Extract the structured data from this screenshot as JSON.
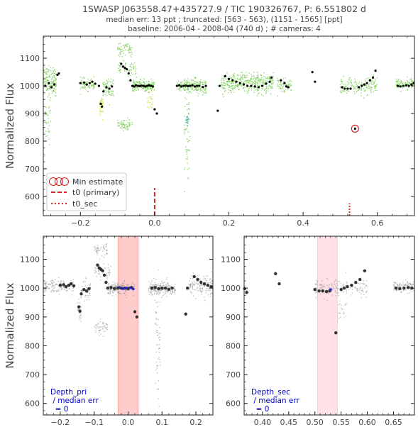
{
  "header": {
    "title": "1SWASP J063558.47+435727.9 / TIC 190326767, P: 6.551802 d",
    "subtitle1": "median err: 13 ppt ; truncated: [563 - 563), (1151 - 1565] [ppt]",
    "subtitle2": "baseline: 2006-04 - 2008-04 (740 d)  ;  # cameras: 4"
  },
  "colors": {
    "camera_green": "#7fd15a",
    "camera_yellow": "#d8dd3a",
    "camera_teal": "#3aa0a0",
    "camera_purple": "#8a3ab0",
    "binned": "#000000",
    "min_marker": "#d62728",
    "t0_line": "#d62728",
    "primary_band": "#ff9999",
    "secondary_band": "#ffc8d2",
    "annotation": "#0000cc"
  },
  "chart_data": [
    {
      "id": "top",
      "type": "scatter",
      "xlim": [
        -0.3,
        0.7
      ],
      "ylim": [
        530,
        1180
      ],
      "ylabel": "Normalized Flux",
      "xlabel": "",
      "x_ticks": [
        -0.2,
        0.0,
        0.2,
        0.4,
        0.6
      ],
      "x_tick_labels": [
        "−0.2",
        "0.0",
        "0.2",
        "0.4",
        "0.6"
      ],
      "y_ticks": [
        600,
        700,
        800,
        900,
        1000,
        1100
      ],
      "y_tick_labels": [
        "600",
        "700",
        "800",
        "900",
        "1000",
        "1100"
      ],
      "legend": {
        "placement": "lower-left",
        "entries": [
          "Min estimate",
          "t0 (primary)",
          "t0_sec"
        ]
      },
      "t0_primary": 0.0,
      "t0_sec": 0.525,
      "min_estimate": {
        "x": 0.54,
        "y": 845
      },
      "binned": [
        [
          -0.295,
          1000
        ],
        [
          -0.285,
          1010
        ],
        [
          -0.278,
          995
        ],
        [
          -0.27,
          1005
        ],
        [
          -0.262,
          1040
        ],
        [
          -0.258,
          1045
        ],
        [
          -0.2,
          1010
        ],
        [
          -0.19,
          1012
        ],
        [
          -0.183,
          1005
        ],
        [
          -0.175,
          1010
        ],
        [
          -0.168,
          1015
        ],
        [
          -0.16,
          1008
        ],
        [
          -0.15,
          1000
        ],
        [
          -0.145,
          935
        ],
        [
          -0.142,
          925
        ],
        [
          -0.138,
          980
        ],
        [
          -0.13,
          995
        ],
        [
          -0.122,
          990
        ],
        [
          -0.115,
          998
        ],
        [
          -0.09,
          1080
        ],
        [
          -0.085,
          1070
        ],
        [
          -0.08,
          1065
        ],
        [
          -0.075,
          1060
        ],
        [
          -0.07,
          1045
        ],
        [
          -0.065,
          1020
        ],
        [
          -0.06,
          1000
        ],
        [
          -0.055,
          998
        ],
        [
          -0.05,
          1002
        ],
        [
          -0.045,
          1000
        ],
        [
          -0.04,
          999
        ],
        [
          -0.035,
          1001
        ],
        [
          -0.03,
          1000
        ],
        [
          -0.025,
          998
        ],
        [
          -0.02,
          1000
        ],
        [
          -0.015,
          1002
        ],
        [
          -0.01,
          1000
        ],
        [
          -0.005,
          998
        ],
        [
          0.0,
          915
        ],
        [
          0.006,
          900
        ],
        [
          0.06,
          1000
        ],
        [
          0.066,
          1002
        ],
        [
          0.072,
          998
        ],
        [
          0.078,
          1000
        ],
        [
          0.084,
          1001
        ],
        [
          0.09,
          999
        ],
        [
          0.096,
          1000
        ],
        [
          0.102,
          1002
        ],
        [
          0.108,
          998
        ],
        [
          0.114,
          1000
        ],
        [
          0.12,
          1000
        ],
        [
          0.13,
          996
        ],
        [
          0.138,
          1000
        ],
        [
          0.17,
          910
        ],
        [
          0.175,
          1000
        ],
        [
          0.19,
          1035
        ],
        [
          0.2,
          1025
        ],
        [
          0.21,
          1020
        ],
        [
          0.22,
          1015
        ],
        [
          0.23,
          1010
        ],
        [
          0.24,
          1005
        ],
        [
          0.25,
          1000
        ],
        [
          0.26,
          1000
        ],
        [
          0.27,
          998
        ],
        [
          0.28,
          995
        ],
        [
          0.29,
          1000
        ],
        [
          0.3,
          1008
        ],
        [
          0.31,
          1015
        ],
        [
          0.315,
          1030
        ],
        [
          0.34,
          1020
        ],
        [
          0.35,
          1010
        ],
        [
          0.355,
          998
        ],
        [
          0.36,
          995
        ],
        [
          0.425,
          1050
        ],
        [
          0.432,
          1015
        ],
        [
          0.505,
          995
        ],
        [
          0.512,
          990
        ],
        [
          0.52,
          990
        ],
        [
          0.528,
          990
        ],
        [
          0.54,
          845
        ],
        [
          0.55,
          995
        ],
        [
          0.558,
          1000
        ],
        [
          0.565,
          1005
        ],
        [
          0.572,
          1010
        ],
        [
          0.58,
          1020
        ],
        [
          0.588,
          1030
        ],
        [
          0.595,
          1055
        ],
        [
          0.655,
          1000
        ],
        [
          0.662,
          998
        ],
        [
          0.67,
          1000
        ],
        [
          0.678,
          1002
        ],
        [
          0.685,
          1000
        ],
        [
          0.692,
          1005
        ],
        [
          0.698,
          1010
        ]
      ],
      "raw_clusters": [
        {
          "x": [
            -0.3,
            -0.265
          ],
          "y_center": 1020,
          "y_spread": 50,
          "n": 150,
          "color": "#7fd15a"
        },
        {
          "x": [
            -0.3,
            -0.28
          ],
          "y_center": 880,
          "y_spread": 80,
          "n": 40,
          "color": "#7fd15a"
        },
        {
          "x": [
            -0.2,
            -0.16
          ],
          "y_center": 1005,
          "y_spread": 20,
          "n": 80,
          "color": "#7fd15a"
        },
        {
          "x": [
            -0.148,
            -0.138
          ],
          "y_center": 925,
          "y_spread": 40,
          "n": 40,
          "color": "#d8dd3a"
        },
        {
          "x": [
            -0.14,
            -0.11
          ],
          "y_center": 990,
          "y_spread": 40,
          "n": 70,
          "color": "#7fd15a"
        },
        {
          "x": [
            -0.1,
            -0.06
          ],
          "y_center": 1130,
          "y_spread": 20,
          "n": 60,
          "color": "#7fd15a"
        },
        {
          "x": [
            -0.1,
            -0.06
          ],
          "y_center": 860,
          "y_spread": 25,
          "n": 60,
          "color": "#7fd15a"
        },
        {
          "x": [
            -0.1,
            -0.05
          ],
          "y_center": 1060,
          "y_spread": 30,
          "n": 60,
          "color": "#7fd15a"
        },
        {
          "x": [
            -0.06,
            0.0
          ],
          "y_center": 1000,
          "y_spread": 20,
          "n": 180,
          "color": "#7fd15a"
        },
        {
          "x": [
            -0.02,
            -0.005
          ],
          "y_center": 950,
          "y_spread": 30,
          "n": 25,
          "color": "#d8dd3a"
        },
        {
          "x": [
            0.06,
            0.14
          ],
          "y_center": 1000,
          "y_spread": 25,
          "n": 220,
          "color": "#7fd15a"
        },
        {
          "x": [
            0.08,
            0.095
          ],
          "y_center": 800,
          "y_spread": 200,
          "n": 60,
          "color": "#7fd15a"
        },
        {
          "x": [
            0.085,
            0.092
          ],
          "y_center": 870,
          "y_spread": 20,
          "n": 15,
          "color": "#3aa0a0"
        },
        {
          "x": [
            0.18,
            0.32
          ],
          "y_center": 1010,
          "y_spread": 35,
          "n": 380,
          "color": "#7fd15a"
        },
        {
          "x": [
            0.33,
            0.37
          ],
          "y_center": 1005,
          "y_spread": 25,
          "n": 60,
          "color": "#7fd15a"
        },
        {
          "x": [
            0.5,
            0.6
          ],
          "y_center": 1000,
          "y_spread": 30,
          "n": 160,
          "color": "#7fd15a"
        },
        {
          "x": [
            0.65,
            0.7
          ],
          "y_center": 1005,
          "y_spread": 20,
          "n": 100,
          "color": "#7fd15a"
        }
      ]
    },
    {
      "id": "bottom-left",
      "type": "scatter",
      "xlim": [
        -0.25,
        0.25
      ],
      "ylim": [
        560,
        1180
      ],
      "ylabel": "Normalized Flux",
      "x_ticks": [
        -0.2,
        -0.1,
        0.0,
        0.1,
        0.2
      ],
      "x_tick_labels": [
        "−0.2",
        "−0.1",
        "0.0",
        "0.1",
        "0.2"
      ],
      "y_ticks": [
        600,
        700,
        800,
        900,
        1000,
        1100
      ],
      "y_tick_labels": [
        "600",
        "700",
        "800",
        "900",
        "1000",
        "1100"
      ],
      "band": [
        -0.03,
        0.03
      ],
      "annotation": [
        "Depth_pri",
        " / median err",
        "  = 0"
      ],
      "binned": [
        [
          -0.2,
          1010
        ],
        [
          -0.19,
          1012
        ],
        [
          -0.183,
          1005
        ],
        [
          -0.175,
          1010
        ],
        [
          -0.168,
          1015
        ],
        [
          -0.16,
          1008
        ],
        [
          -0.145,
          935
        ],
        [
          -0.142,
          920
        ],
        [
          -0.138,
          980
        ],
        [
          -0.13,
          995
        ],
        [
          -0.122,
          990
        ],
        [
          -0.115,
          998
        ],
        [
          -0.09,
          1080
        ],
        [
          -0.085,
          1070
        ],
        [
          -0.08,
          1065
        ],
        [
          -0.075,
          1060
        ],
        [
          -0.07,
          1045
        ],
        [
          -0.065,
          1020
        ],
        [
          -0.06,
          1000
        ],
        [
          -0.05,
          1002
        ],
        [
          -0.04,
          999
        ],
        [
          -0.03,
          1000
        ],
        [
          -0.02,
          1000
        ],
        [
          -0.01,
          1000
        ],
        [
          0.0,
          998
        ],
        [
          0.01,
          1002
        ],
        [
          0.02,
          918
        ],
        [
          0.026,
          900
        ],
        [
          0.07,
          1000
        ],
        [
          0.08,
          1002
        ],
        [
          0.09,
          998
        ],
        [
          0.1,
          1000
        ],
        [
          0.11,
          1000
        ],
        [
          0.12,
          996
        ],
        [
          0.13,
          1000
        ],
        [
          0.17,
          910
        ],
        [
          0.175,
          1000
        ],
        [
          0.195,
          1040
        ],
        [
          0.205,
          1030
        ],
        [
          0.215,
          1020
        ],
        [
          0.225,
          1015
        ],
        [
          0.235,
          1010
        ],
        [
          0.245,
          1005
        ]
      ],
      "raw_clusters": [
        {
          "x": [
            -0.25,
            -0.16
          ],
          "y_center": 1005,
          "y_spread": 25,
          "n": 140
        },
        {
          "x": [
            -0.15,
            -0.138
          ],
          "y_center": 920,
          "y_spread": 40,
          "n": 30
        },
        {
          "x": [
            -0.14,
            -0.11
          ],
          "y_center": 990,
          "y_spread": 40,
          "n": 60
        },
        {
          "x": [
            -0.1,
            -0.06
          ],
          "y_center": 1130,
          "y_spread": 20,
          "n": 50
        },
        {
          "x": [
            -0.1,
            -0.06
          ],
          "y_center": 860,
          "y_spread": 25,
          "n": 50
        },
        {
          "x": [
            -0.1,
            -0.05
          ],
          "y_center": 1060,
          "y_spread": 30,
          "n": 50
        },
        {
          "x": [
            -0.06,
            0.02
          ],
          "y_center": 1000,
          "y_spread": 20,
          "n": 200
        },
        {
          "x": [
            0.06,
            0.14
          ],
          "y_center": 1000,
          "y_spread": 25,
          "n": 220
        },
        {
          "x": [
            0.08,
            0.095
          ],
          "y_center": 800,
          "y_spread": 200,
          "n": 60
        },
        {
          "x": [
            0.18,
            0.25
          ],
          "y_center": 1010,
          "y_spread": 35,
          "n": 150
        }
      ],
      "highlight_points": [
        [
          -0.025,
          1002
        ],
        [
          -0.015,
          998
        ],
        [
          -0.005,
          1000
        ],
        [
          0.005,
          1001
        ],
        [
          0.015,
          997
        ]
      ]
    },
    {
      "id": "bottom-right",
      "type": "scatter",
      "xlim": [
        0.365,
        0.69
      ],
      "ylim": [
        560,
        1180
      ],
      "x_ticks": [
        0.4,
        0.45,
        0.5,
        0.55,
        0.6,
        0.65
      ],
      "x_tick_labels": [
        "0.40",
        "0.45",
        "0.50",
        "0.55",
        "0.60",
        "0.65"
      ],
      "y_ticks": [
        600,
        700,
        800,
        900,
        1000,
        1100
      ],
      "y_tick_labels": [
        "600",
        "700",
        "800",
        "900",
        "1000",
        "1100"
      ],
      "band": [
        0.505,
        0.543
      ],
      "annotation": [
        "Depth_sec",
        " / median err",
        "  = 0"
      ],
      "binned": [
        [
          0.366,
          998
        ],
        [
          0.37,
          985
        ],
        [
          0.425,
          1050
        ],
        [
          0.432,
          1015
        ],
        [
          0.5,
          995
        ],
        [
          0.508,
          990
        ],
        [
          0.515,
          990
        ],
        [
          0.522,
          988
        ],
        [
          0.528,
          990
        ],
        [
          0.54,
          845
        ],
        [
          0.55,
          995
        ],
        [
          0.556,
          1000
        ],
        [
          0.562,
          1005
        ],
        [
          0.57,
          1010
        ],
        [
          0.578,
          1020
        ],
        [
          0.586,
          1030
        ],
        [
          0.595,
          1060
        ],
        [
          0.655,
          1000
        ],
        [
          0.662,
          998
        ],
        [
          0.67,
          1000
        ],
        [
          0.678,
          1002
        ],
        [
          0.685,
          1000
        ]
      ],
      "raw_clusters": [
        {
          "x": [
            0.365,
            0.372
          ],
          "y_center": 995,
          "y_spread": 15,
          "n": 10
        },
        {
          "x": [
            0.5,
            0.6
          ],
          "y_center": 1000,
          "y_spread": 30,
          "n": 160
        },
        {
          "x": [
            0.545,
            0.56
          ],
          "y_center": 930,
          "y_spread": 40,
          "n": 20
        },
        {
          "x": [
            0.65,
            0.69
          ],
          "y_center": 1005,
          "y_spread": 20,
          "n": 100
        }
      ],
      "highlight_points": [
        [
          0.53,
          995
        ]
      ]
    }
  ]
}
